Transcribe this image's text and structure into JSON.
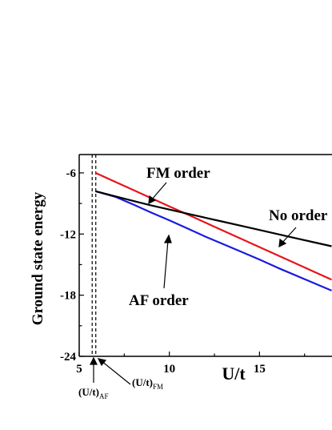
{
  "chart_data": {
    "type": "line",
    "title": "",
    "xlabel": "U/t",
    "ylabel": "Ground state energy",
    "xlim": [
      5,
      19
    ],
    "ylim": [
      -24,
      -4.2
    ],
    "x_ticks": [
      5,
      10,
      15
    ],
    "y_ticks": [
      -6,
      -12,
      -18,
      -24
    ],
    "x_tick_labels": [
      "5",
      "10",
      "15"
    ],
    "y_tick_labels": [
      "-6",
      "-12",
      "-18",
      "-24"
    ],
    "grid": false,
    "legend": "none",
    "series": [
      {
        "name": "FM order",
        "color": "#e8141b",
        "x": [
          5.9,
          7,
          8,
          9,
          10,
          11,
          12,
          13,
          14,
          15,
          16,
          17,
          18,
          19
        ],
        "y": [
          -6.0,
          -6.88,
          -7.68,
          -8.48,
          -9.28,
          -10.08,
          -10.88,
          -11.68,
          -12.48,
          -13.28,
          -14.08,
          -14.88,
          -15.68,
          -16.48
        ]
      },
      {
        "name": "AF order",
        "color": "#1a1ae0",
        "x": [
          5.9,
          7,
          8,
          9,
          10,
          11,
          12,
          13,
          14,
          15,
          16,
          17,
          18,
          19
        ],
        "y": [
          -7.8,
          -8.35,
          -9.1,
          -9.9,
          -10.65,
          -11.45,
          -12.25,
          -13.0,
          -13.75,
          -14.5,
          -15.3,
          -16.05,
          -16.8,
          -17.55
        ]
      },
      {
        "name": "No order",
        "color": "#000000",
        "x": [
          5.9,
          7,
          8,
          9,
          10,
          11,
          12,
          13,
          14,
          15,
          16,
          17,
          18,
          19
        ],
        "y": [
          -7.8,
          -8.3,
          -8.75,
          -9.2,
          -9.6,
          -10.0,
          -10.4,
          -10.8,
          -11.2,
          -11.6,
          -12.0,
          -12.4,
          -12.8,
          -13.2
        ]
      }
    ],
    "vertical_markers": [
      {
        "x": 5.72,
        "style": "dashed"
      },
      {
        "x": 5.92,
        "style": "dashed"
      }
    ],
    "annotations": {
      "fm": "FM order",
      "no": "No order",
      "af": "AF order",
      "uaf_main": "(U/t)",
      "uaf_sub": "AF",
      "ufm_main": "(U/t)",
      "ufm_sub": "FM"
    }
  }
}
